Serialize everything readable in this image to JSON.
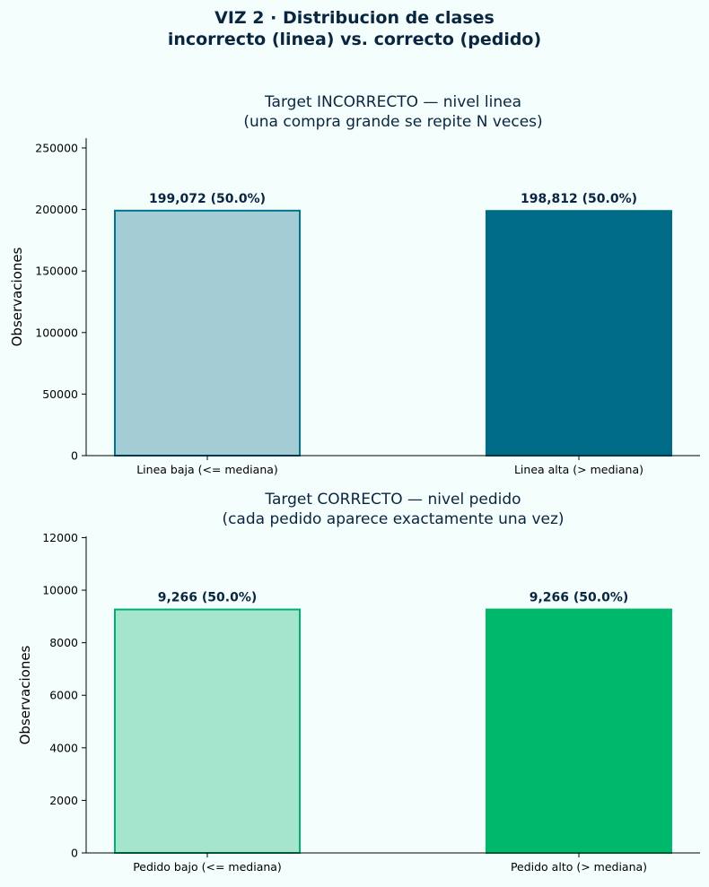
{
  "figure": {
    "suptitle_line1": "VIZ 2 · Distribucion de clases",
    "suptitle_line2": "incorrecto (linea) vs. correcto (pedido)",
    "title_color": "#0a2540",
    "background": "#f4fffd"
  },
  "chart_data": [
    {
      "type": "bar",
      "title_line1": "Target INCORRECTO — nivel linea",
      "title_line2": "(una compra grande se repite N veces)",
      "ylabel": "Observaciones",
      "xlabel": "",
      "categories": [
        "Linea baja (<= mediana)",
        "Linea alta (> mediana)"
      ],
      "values": [
        199072,
        198812
      ],
      "value_labels": [
        "199,072  (50.0%)",
        "198,812  (50.0%)"
      ],
      "ylim": [
        0,
        258000
      ],
      "yticks": [
        0,
        50000,
        100000,
        150000,
        200000,
        250000
      ],
      "bar_fill": [
        "#a3ccd4",
        "#006b87"
      ],
      "bar_edge": [
        "#007590",
        "#006b87"
      ],
      "grid": false
    },
    {
      "type": "bar",
      "title_line1": "Target CORRECTO — nivel pedido",
      "title_line2": "(cada pedido aparece exactamente una vez)",
      "ylabel": "Observaciones",
      "xlabel": "",
      "categories": [
        "Pedido bajo (<= mediana)",
        "Pedido alto (> mediana)"
      ],
      "values": [
        9266,
        9266
      ],
      "value_labels": [
        "9,266  (50.0%)",
        "9,266  (50.0%)"
      ],
      "ylim": [
        0,
        12050
      ],
      "yticks": [
        0,
        2000,
        4000,
        6000,
        8000,
        10000,
        12000
      ],
      "bar_fill": [
        "#a5e5cd",
        "#00b86b"
      ],
      "bar_edge": [
        "#00b070",
        "#00b86b"
      ],
      "grid": false
    }
  ]
}
